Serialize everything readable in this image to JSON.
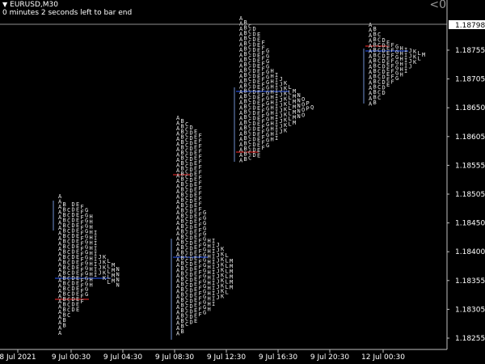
{
  "header": {
    "symbol": "EURUSD,M30",
    "timer_text": "0 minutes 2 seconds left to bar end",
    "menu_icon": "triangle-down-icon"
  },
  "corner_text": "<0",
  "colors": {
    "background": "#000000",
    "foreground": "#ffffff",
    "grid": "#3a3a3a",
    "poc_red": "#ff2b2b",
    "value_blue": "#2b5bff",
    "tpo_text": "#e8e8e8",
    "highlight_orange": "#ff6633"
  },
  "price_axis": {
    "current_price": "1.18798",
    "ticks": [
      "1.18755",
      "1.18705",
      "1.18650",
      "1.18605",
      "1.18555",
      "1.18505",
      "1.18450",
      "1.18400",
      "1.18355",
      "1.18305",
      "1.18255"
    ]
  },
  "time_axis": {
    "ticks": [
      "8 Jul 2021",
      "9 Jul 00:30",
      "9 Jul 04:30",
      "9 Jul 08:30",
      "9 Jul 12:30",
      "9 Jul 16:30",
      "9 Jul 20:30",
      "12 Jul 00:30"
    ]
  }
}
